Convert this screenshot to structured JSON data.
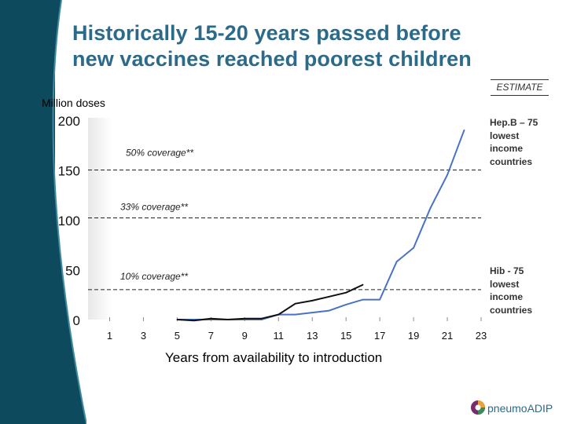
{
  "slide": {
    "title_line1": "Historically 15-20 years passed before",
    "title_line2": "new vaccines reached poorest children",
    "estimate_label": "ESTIMATE",
    "logo_text": "pneumoADIP"
  },
  "colors": {
    "band_dark": "#0d4a5e",
    "band_mid": "#1c6b80",
    "title": "#2c6a8a",
    "hepb_line": "#4a72c4",
    "hib_line": "#111111"
  },
  "chart_data": {
    "type": "line",
    "title": "",
    "ylabel": "Million doses",
    "xlabel": "Years from availability to introduction",
    "ylim": [
      0,
      200
    ],
    "xlim": [
      0,
      23
    ],
    "yticks": [
      0,
      50,
      100,
      150,
      200
    ],
    "xticks": [
      1,
      3,
      5,
      7,
      9,
      11,
      13,
      15,
      17,
      19,
      21,
      23
    ],
    "reference_lines": [
      {
        "label": "50% coverage**",
        "y": 150
      },
      {
        "label": "33% coverage**",
        "y": 102
      },
      {
        "label": "10% coverage**",
        "y": 30
      }
    ],
    "series": [
      {
        "name": "Hep",
        "legend": "Hep. B – 75 lowest income countries",
        "legend_lines": [
          "Hep.B – 75",
          "lowest",
          "income",
          "countries"
        ],
        "x": [
          5,
          6,
          7,
          8,
          9,
          10,
          11,
          12,
          13,
          14,
          15,
          16,
          17,
          18,
          19,
          20,
          21,
          22
        ],
        "y": [
          0,
          0,
          0,
          0,
          0,
          0,
          5,
          5,
          7,
          9,
          15,
          20,
          20,
          58,
          72,
          112,
          145,
          190
        ]
      },
      {
        "name": "Hib",
        "legend": "Hib - 75 lowest income countries",
        "legend_lines": [
          "Hib - 75",
          "lowest",
          "income",
          "countries"
        ],
        "x": [
          5,
          6,
          7,
          8,
          9,
          10,
          11,
          12,
          13,
          14,
          15,
          16
        ],
        "y": [
          0,
          -1,
          1,
          0,
          1,
          1,
          5,
          16,
          19,
          23,
          27,
          35
        ]
      }
    ]
  }
}
